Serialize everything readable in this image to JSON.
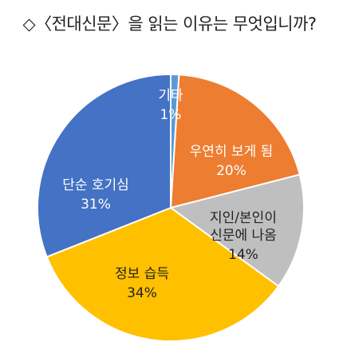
{
  "title": "◇〈전대신문〉을 읽는 이유는 무엇입니까?",
  "chart_data": {
    "type": "pie",
    "title": "◇〈전대신문〉을 읽는 이유는 무엇입니까?",
    "slices": [
      {
        "label": "기타",
        "value": 1,
        "value_label": "1%",
        "color": "#5b9bd5",
        "text_color": "#ffffff"
      },
      {
        "label": "우연히 보게 됨",
        "value": 20,
        "value_label": "20%",
        "color": "#ed7d31",
        "text_color": "#ffffff"
      },
      {
        "label": "지인/본인이 신문에 나옴",
        "value": 14,
        "value_label": "14%",
        "color": "#bfbfbf",
        "text_color": "#222222"
      },
      {
        "label": "정보 습득",
        "value": 34,
        "value_label": "34%",
        "color": "#ffc000",
        "text_color": "#222222"
      },
      {
        "label": "단순 호기심",
        "value": 31,
        "value_label": "31%",
        "color": "#4472c4",
        "text_color": "#ffffff"
      }
    ],
    "legend": "none"
  }
}
